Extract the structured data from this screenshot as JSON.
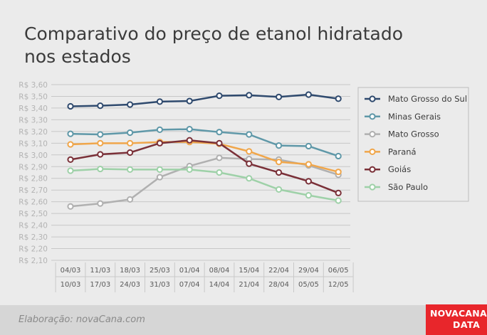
{
  "title_line1": "Comparativo do preço de etanol hidratado",
  "title_line2": "nos estados",
  "footer": {
    "credit": "Elaboração: novaCana.com",
    "logo_line1": "NOVACANA",
    "logo_line2": "DATA"
  },
  "chart_data": {
    "type": "line",
    "title": "Comparativo do preço de etanol hidratado nos estados",
    "y_ticks": [
      "R$ 2,10",
      "R$ 2,20",
      "R$ 2,30",
      "R$ 2,40",
      "R$ 2,50",
      "R$ 2,60",
      "R$ 2,70",
      "R$ 2,80",
      "R$ 2,90",
      "R$ 3,00",
      "R$ 3,10",
      "R$ 3,20",
      "R$ 3,30",
      "R$ 3,40",
      "R$ 3,50",
      "R$ 3,60"
    ],
    "ylim": [
      2.1,
      3.6
    ],
    "categories_start": [
      "04/03",
      "11/03",
      "18/03",
      "25/03",
      "01/04",
      "08/04",
      "15/04",
      "22/04",
      "29/04",
      "06/05"
    ],
    "categories_end": [
      "10/03",
      "17/03",
      "24/03",
      "31/03",
      "07/04",
      "14/04",
      "21/04",
      "28/04",
      "05/05",
      "12/05"
    ],
    "legend_position": "right",
    "grid": true,
    "series": [
      {
        "name": "Mato Grosso do Sul",
        "color": "#2f4a6e",
        "values": [
          3.415,
          3.42,
          3.43,
          3.455,
          3.46,
          3.505,
          3.51,
          3.495,
          3.515,
          3.48
        ]
      },
      {
        "name": "Minas Gerais",
        "color": "#5f98a8",
        "values": [
          3.18,
          3.175,
          3.19,
          3.215,
          3.22,
          3.195,
          3.175,
          3.08,
          3.075,
          2.99
        ]
      },
      {
        "name": "Mato Grosso",
        "color": "#b0b0b0",
        "values": [
          2.56,
          2.585,
          2.62,
          2.81,
          2.905,
          2.975,
          2.965,
          2.96,
          2.91,
          2.83
        ]
      },
      {
        "name": "Paraná",
        "color": "#f0a64a",
        "values": [
          3.09,
          3.1,
          3.1,
          3.11,
          3.11,
          3.095,
          3.03,
          2.94,
          2.92,
          2.855
        ]
      },
      {
        "name": "Goiás",
        "color": "#7a3038",
        "values": [
          2.96,
          3.005,
          3.02,
          3.1,
          3.125,
          3.1,
          2.925,
          2.85,
          2.775,
          2.675
        ]
      },
      {
        "name": "São Paulo",
        "color": "#9ed1a8",
        "values": [
          2.865,
          2.88,
          2.875,
          2.875,
          2.875,
          2.85,
          2.8,
          2.705,
          2.655,
          2.61
        ]
      }
    ]
  }
}
